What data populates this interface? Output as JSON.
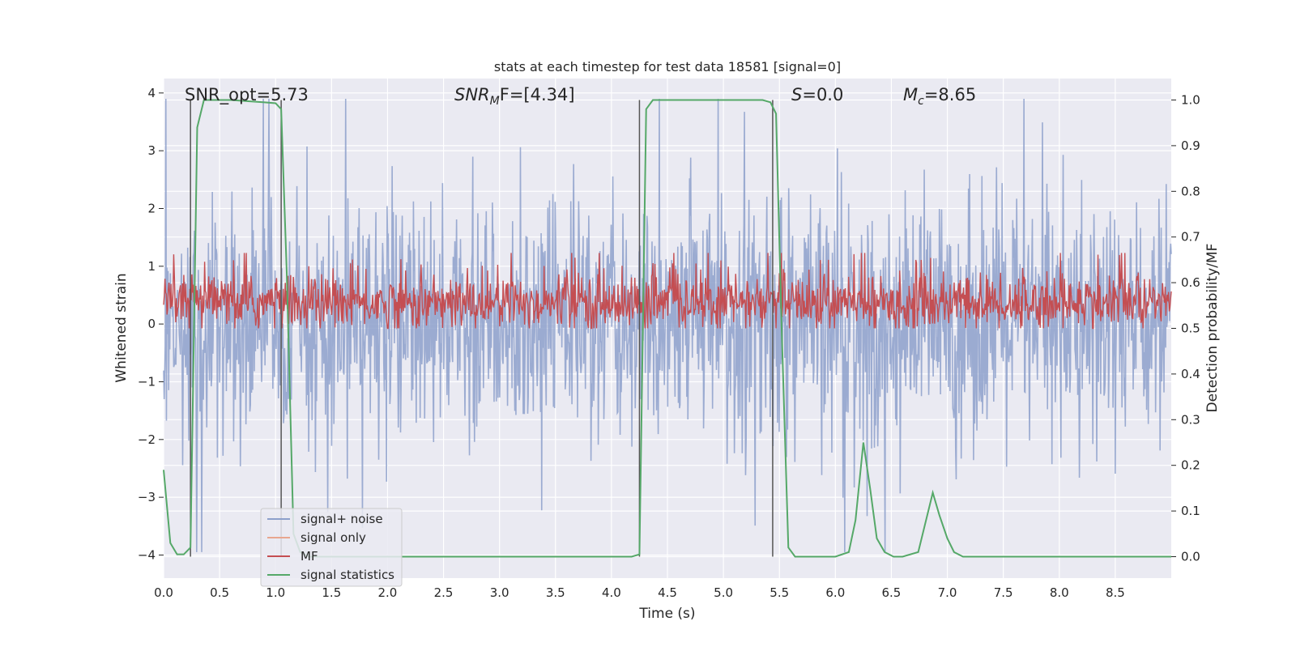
{
  "chart_data": {
    "type": "line",
    "title": "stats at each timestep for test data 18581 [signal=0]",
    "xlabel": "Time (s)",
    "ylabel_left": "Whitened strain",
    "ylabel_right": "Detection probability/MF",
    "xlim": [
      0,
      9.0
    ],
    "ylim_left": [
      -4.4,
      4.25
    ],
    "ylim_right": [
      -0.047,
      1.047
    ],
    "x_ticks": [
      "0.0",
      "0.5",
      "1.0",
      "1.5",
      "2.0",
      "2.5",
      "3.0",
      "3.5",
      "4.0",
      "4.5",
      "5.0",
      "5.5",
      "6.0",
      "6.5",
      "7.0",
      "7.5",
      "8.0",
      "8.5"
    ],
    "y_ticks_left": [
      "−4",
      "−3",
      "−2",
      "−1",
      "0",
      "1",
      "2",
      "3",
      "4"
    ],
    "y_ticks_right": [
      "0.0",
      "0.1",
      "0.2",
      "0.3",
      "0.4",
      "0.5",
      "0.6",
      "0.7",
      "0.8",
      "0.9",
      "1.0"
    ],
    "grid": true,
    "background": "#EAEAF2",
    "annotations": {
      "snr_opt": "SNR_opt=5.73",
      "snr_mf_main": "SNR",
      "snr_mf_sub": "M",
      "snr_mf_rest": "F=[4.34]",
      "s_main": "S",
      "s_rest": "=0.0",
      "mc_main": "M",
      "mc_sub": "c",
      "mc_rest": "=8.65"
    },
    "vertical_markers_x": [
      0.24,
      1.05,
      4.25,
      5.44
    ],
    "legend": {
      "placement": "lower-left",
      "entries": [
        {
          "label": "signal+ noise",
          "color": "#8DA0CB"
        },
        {
          "label": "signal only",
          "color": "#E8A68F"
        },
        {
          "label": "MF",
          "color": "#C44E52"
        },
        {
          "label": "signal statistics",
          "color": "#55A868"
        }
      ]
    },
    "series": [
      {
        "name": "signal+ noise",
        "axis": "left",
        "color": "#8DA0CB",
        "description": "whitened strain noise trace, amplitude roughly -4 to 4"
      },
      {
        "name": "MF",
        "axis": "right",
        "color": "#C44E52",
        "description": "matched filter output fluctuating around 0.55 on right axis"
      },
      {
        "name": "signal statistics",
        "axis": "right",
        "color": "#55A868",
        "x": [
          0.0,
          0.06,
          0.12,
          0.18,
          0.24,
          0.3,
          0.36,
          0.42,
          0.6,
          0.9,
          1.0,
          1.05,
          1.1,
          1.16,
          1.22,
          1.3,
          1.5,
          2.0,
          3.0,
          4.0,
          4.18,
          4.25,
          4.31,
          4.37,
          4.45,
          5.0,
          5.35,
          5.42,
          5.47,
          5.52,
          5.58,
          5.64,
          5.72,
          6.0,
          6.12,
          6.18,
          6.25,
          6.31,
          6.37,
          6.44,
          6.52,
          6.6,
          6.74,
          6.8,
          6.87,
          6.93,
          7.0,
          7.06,
          7.14,
          7.3,
          8.0,
          9.0
        ],
        "y": [
          0.19,
          0.03,
          0.005,
          0.005,
          0.02,
          0.94,
          1.0,
          1.0,
          1.0,
          0.995,
          0.993,
          0.98,
          0.62,
          0.05,
          0.01,
          0.0,
          0.0,
          0.0,
          0.0,
          0.0,
          0.0,
          0.005,
          0.98,
          1.0,
          1.0,
          1.0,
          1.0,
          0.995,
          0.97,
          0.5,
          0.02,
          0.0,
          0.0,
          0.0,
          0.01,
          0.08,
          0.25,
          0.15,
          0.04,
          0.01,
          0.0,
          0.0,
          0.01,
          0.07,
          0.14,
          0.09,
          0.04,
          0.01,
          0.0,
          0.0,
          0.0,
          0.0
        ]
      }
    ]
  }
}
